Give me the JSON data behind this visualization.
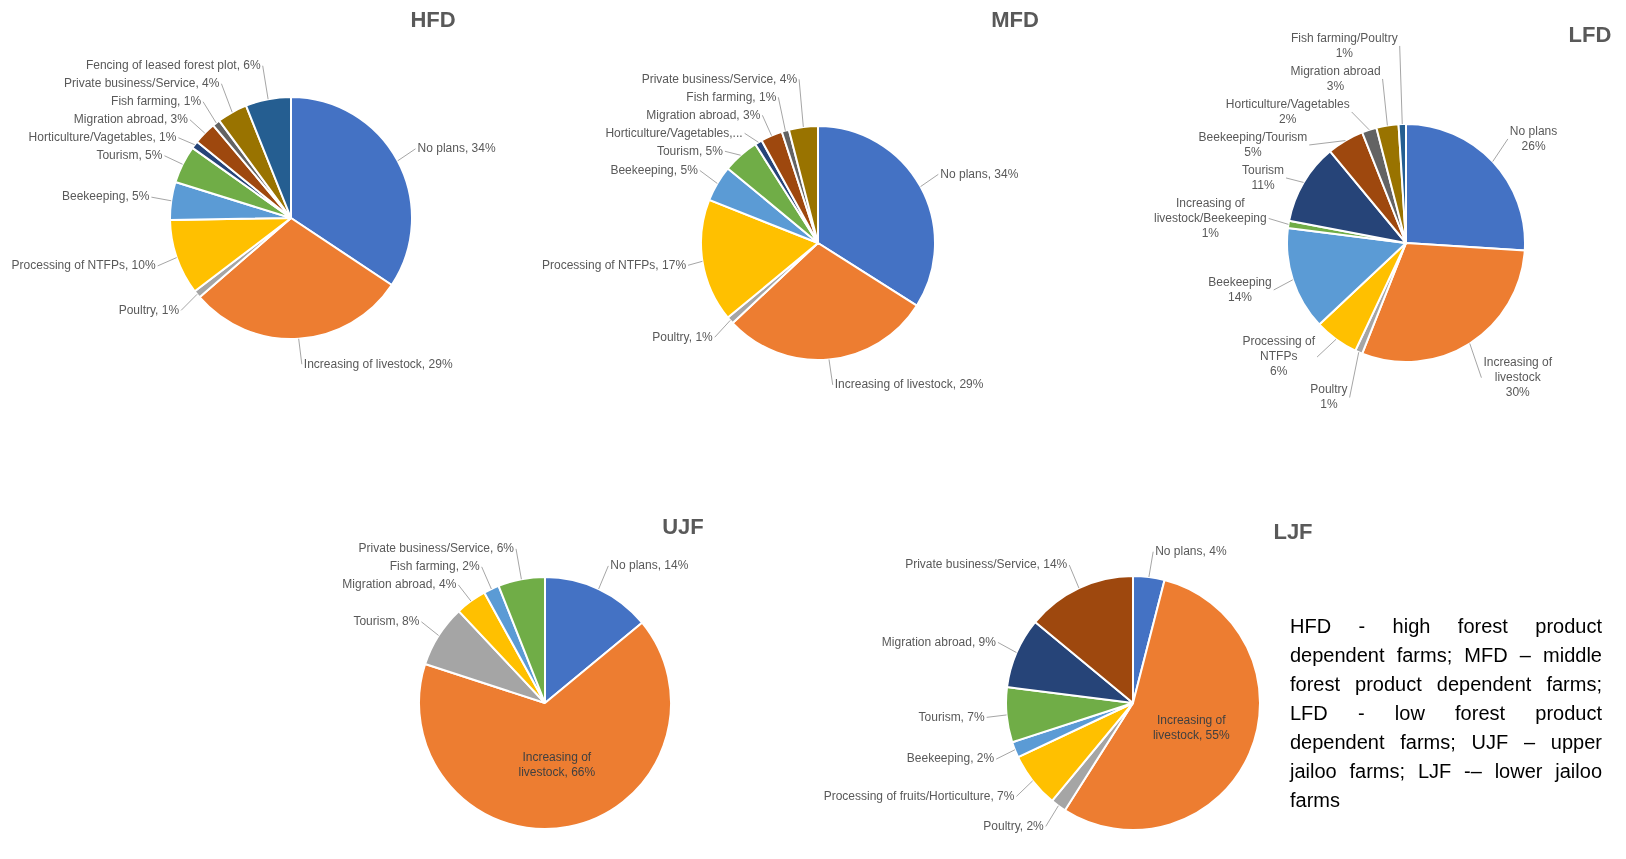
{
  "chart_data": [
    {
      "type": "pie",
      "title": "HFD",
      "categories": [
        "No plans",
        "Increasing of livestock",
        "Poultry",
        "Processing of NTFPs",
        "Beekeeping",
        "Tourism",
        "Horticulture/Vagetables",
        "Migration abroad",
        "Fish farming",
        "Private business/Service",
        "Fencing of leased forest plot"
      ],
      "values": [
        34,
        29,
        1,
        10,
        5,
        5,
        1,
        3,
        1,
        4,
        6
      ],
      "value_labels": [
        "34%",
        "29%",
        "1%",
        "10%",
        "5%",
        "5%",
        "1%",
        "3%",
        "1%",
        "4%",
        "6%"
      ],
      "colors": [
        "#4472c4",
        "#ed7d31",
        "#a5a5a5",
        "#ffc000",
        "#5b9bd5",
        "#70ad47",
        "#264478",
        "#9e480e",
        "#636363",
        "#997300",
        "#255e91"
      ]
    },
    {
      "type": "pie",
      "title": "MFD",
      "categories": [
        "No plans",
        "Increasing of livestock",
        "Poultry",
        "Processing of NTFPs",
        "Beekeeping",
        "Tourism",
        "Horticulture/Vagetables,...",
        "Migration abroad",
        "Fish farming",
        "Private business/Service"
      ],
      "values": [
        34,
        29,
        1,
        17,
        5,
        5,
        1,
        3,
        1,
        4
      ],
      "value_labels": [
        "34%",
        "29%",
        "1%",
        "17%",
        "5%",
        "5%",
        null,
        "3%",
        "1%",
        "4%"
      ],
      "colors": [
        "#4472c4",
        "#ed7d31",
        "#a5a5a5",
        "#ffc000",
        "#5b9bd5",
        "#70ad47",
        "#264478",
        "#9e480e",
        "#636363",
        "#997300"
      ]
    },
    {
      "type": "pie",
      "title": "LFD",
      "categories": [
        "No plans",
        "Increasing of livestock",
        "Poultry",
        "Processing of NTFPs",
        "Beekeeping",
        "Increasing of livestock/Beekeeping",
        "Tourism",
        "Beekeeping/Tourism",
        "Horticulture/Vagetables",
        "Migration abroad",
        "Fish farming/Poultry"
      ],
      "values": [
        26,
        30,
        1,
        6,
        14,
        1,
        11,
        5,
        2,
        3,
        1
      ],
      "value_labels": [
        "26%",
        "30%",
        "1%",
        "6%",
        "14%",
        "1%",
        "11%",
        "5%",
        "2%",
        "3%",
        "1%"
      ],
      "colors": [
        "#4472c4",
        "#ed7d31",
        "#a5a5a5",
        "#ffc000",
        "#5b9bd5",
        "#70ad47",
        "#264478",
        "#9e480e",
        "#636363",
        "#997300",
        "#255e91"
      ]
    },
    {
      "type": "pie",
      "title": "UJF",
      "categories": [
        "No plans",
        "Increasing of livestock",
        "Tourism",
        "Migration abroad",
        "Fish farming",
        "Private business/Service"
      ],
      "values": [
        14,
        66,
        8,
        4,
        2,
        6
      ],
      "value_labels": [
        "14%",
        "66%",
        "8%",
        "4%",
        "2%",
        "6%"
      ],
      "colors": [
        "#4472c4",
        "#ed7d31",
        "#a5a5a5",
        "#ffc000",
        "#5b9bd5",
        "#70ad47"
      ]
    },
    {
      "type": "pie",
      "title": "LJF",
      "categories": [
        "No plans",
        "Increasing of livestock",
        "Poultry",
        "Processing of fruits/Horticulture",
        "Beekeeping",
        "Tourism",
        "Migration abroad",
        "Private business/Service"
      ],
      "values": [
        4,
        55,
        2,
        7,
        2,
        7,
        9,
        14
      ],
      "value_labels": [
        "4%",
        "55%",
        "2%",
        "7%",
        "2%",
        "7%",
        "9%",
        "14%"
      ],
      "colors": [
        "#4472c4",
        "#ed7d31",
        "#a5a5a5",
        "#ffc000",
        "#5b9bd5",
        "#70ad47",
        "#264478",
        "#9e480e"
      ]
    },
    {
      "type": "other",
      "annotations": [
        "HFD - high forest product dependent farms; MFD – middle forest product dependent farms; LFD - low forest product dependent farms; UJF – upper jailoo farms; LJF -– lower jailoo farms"
      ]
    }
  ]
}
